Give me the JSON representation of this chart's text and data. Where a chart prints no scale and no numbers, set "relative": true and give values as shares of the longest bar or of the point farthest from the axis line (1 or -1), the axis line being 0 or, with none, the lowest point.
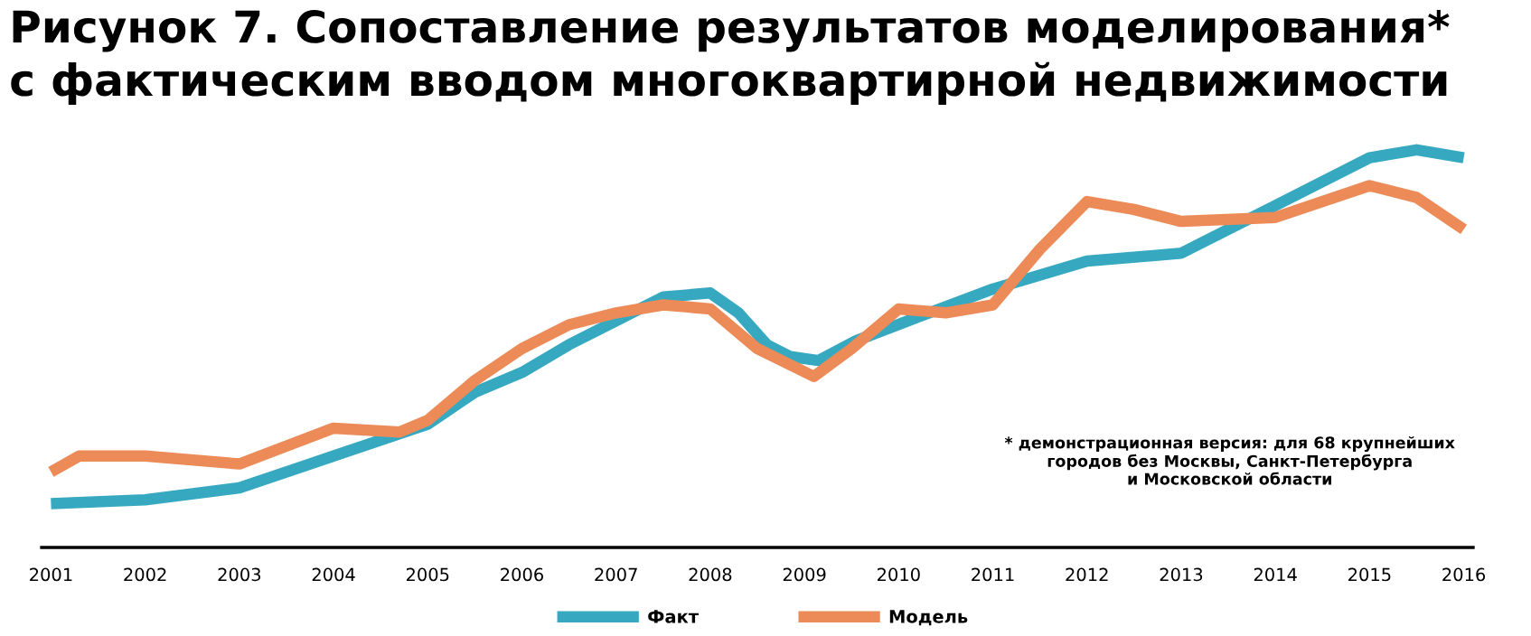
{
  "chart_data": {
    "type": "line",
    "relative": true,
    "title": "Рисунок 7. Сопоставление результатов моделирования*\nс фактическим вводом многоквартирной недвижимости",
    "xlim": [
      2000.9,
      2016.1
    ],
    "xticks": [
      2001,
      2002,
      2003,
      2004,
      2005,
      2006,
      2007,
      2008,
      2009,
      2010,
      2011,
      2012,
      2013,
      2014,
      2015,
      2016
    ],
    "grid": false,
    "legend": "bottom",
    "line_style": "solid",
    "marker": "none",
    "annotations": [
      "* демонстрационная версия: для 68 крупнейших\nгородов без Москвы, Санкт-Петербурга\nи Московской области"
    ],
    "series": [
      {
        "name": "Факт",
        "color": "#36a9c1",
        "x": [
          2001,
          2002,
          2003,
          2004,
          2005,
          2005.5,
          2006,
          2006.5,
          2007,
          2007.5,
          2008,
          2008.3,
          2008.6,
          2008.85,
          2009.15,
          2009.55,
          2010.1,
          2011,
          2012,
          2013,
          2014,
          2015,
          2015.5,
          2016
        ],
        "values": [
          0.11,
          0.12,
          0.15,
          0.23,
          0.31,
          0.39,
          0.44,
          0.51,
          0.57,
          0.63,
          0.64,
          0.59,
          0.51,
          0.48,
          0.47,
          0.52,
          0.57,
          0.65,
          0.72,
          0.74,
          0.86,
          0.98,
          1.0,
          0.98
        ]
      },
      {
        "name": "Модель",
        "color": "#ec8b57",
        "x": [
          2001,
          2001.3,
          2002,
          2003,
          2004,
          2004.7,
          2005,
          2005.5,
          2006,
          2006.5,
          2007,
          2007.5,
          2008,
          2008.5,
          2009.1,
          2009.5,
          2010,
          2010.5,
          2011,
          2011.5,
          2012,
          2012.5,
          2013,
          2014,
          2015,
          2015.5,
          2016
        ],
        "values": [
          0.19,
          0.23,
          0.23,
          0.21,
          0.3,
          0.29,
          0.32,
          0.42,
          0.5,
          0.56,
          0.59,
          0.61,
          0.6,
          0.5,
          0.43,
          0.5,
          0.6,
          0.59,
          0.61,
          0.75,
          0.87,
          0.85,
          0.82,
          0.83,
          0.91,
          0.88,
          0.8
        ]
      }
    ]
  }
}
